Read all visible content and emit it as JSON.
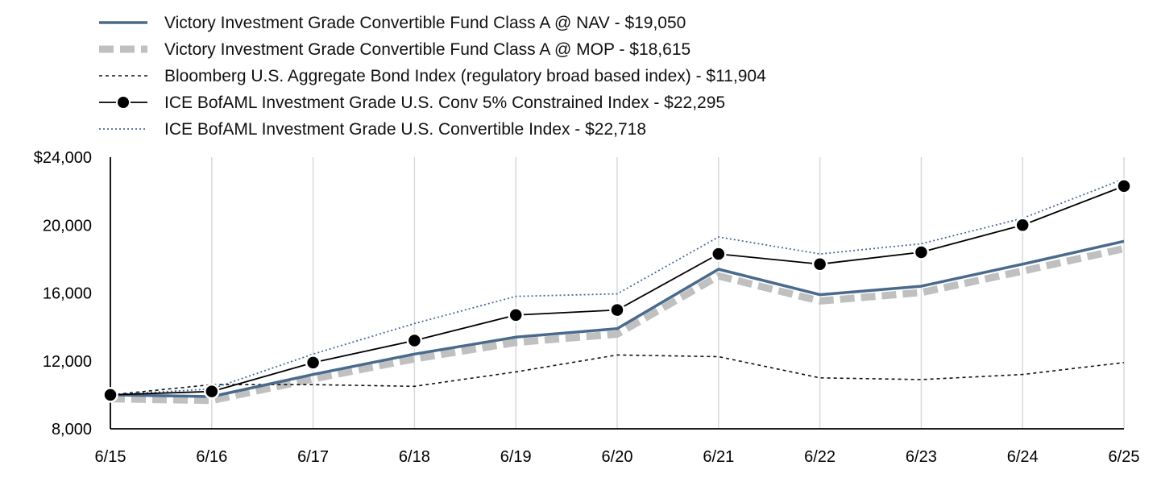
{
  "chart_data": {
    "type": "line",
    "title": "",
    "xlabel": "",
    "ylabel": "",
    "categories": [
      "6/15",
      "6/16",
      "6/17",
      "6/18",
      "6/19",
      "6/20",
      "6/21",
      "6/22",
      "6/23",
      "6/24",
      "6/25"
    ],
    "ylim": [
      8000,
      24000
    ],
    "yticks": [
      8000,
      12000,
      16000,
      20000,
      24000
    ],
    "ytick_labels": [
      "8,000",
      "12,000",
      "16,000",
      "20,000",
      "$24,000"
    ],
    "grid": "vertical",
    "legend_position": "top",
    "series": [
      {
        "name": "Victory Investment Grade Convertible Fund Class A @ NAV - $19,050",
        "color": "#4a6a8c",
        "style": "solid",
        "values": [
          10000,
          9900,
          11200,
          12400,
          13400,
          13900,
          17400,
          15900,
          16400,
          17700,
          19050
        ]
      },
      {
        "name": "Victory Investment Grade Convertible Fund Class A @ MOP - $18,615",
        "color": "#c0c0c0",
        "style": "thick-dashed",
        "values": [
          9770,
          9670,
          10940,
          12120,
          13090,
          13580,
          17000,
          15530,
          16030,
          17290,
          18615
        ]
      },
      {
        "name": "Bloomberg U.S. Aggregate Bond Index (regulatory broad based index) - $11,904",
        "color": "#111111",
        "style": "dashed",
        "values": [
          10000,
          10600,
          10600,
          10500,
          11350,
          12350,
          12250,
          11000,
          10900,
          11200,
          11904
        ]
      },
      {
        "name": "ICE BofAML Investment Grade U.S. Conv 5% Constrained Index - $22,295",
        "color": "#000000",
        "style": "solid-markers",
        "values": [
          10000,
          10200,
          11900,
          13200,
          14700,
          15000,
          18300,
          17700,
          18400,
          20000,
          22295
        ]
      },
      {
        "name": "ICE BofAML Investment Grade U.S. Convertible Index - $22,718",
        "color": "#4a6a9c",
        "style": "dotted",
        "values": [
          10000,
          10350,
          12400,
          14200,
          15800,
          15950,
          19300,
          18300,
          18900,
          20400,
          22718
        ]
      }
    ]
  }
}
